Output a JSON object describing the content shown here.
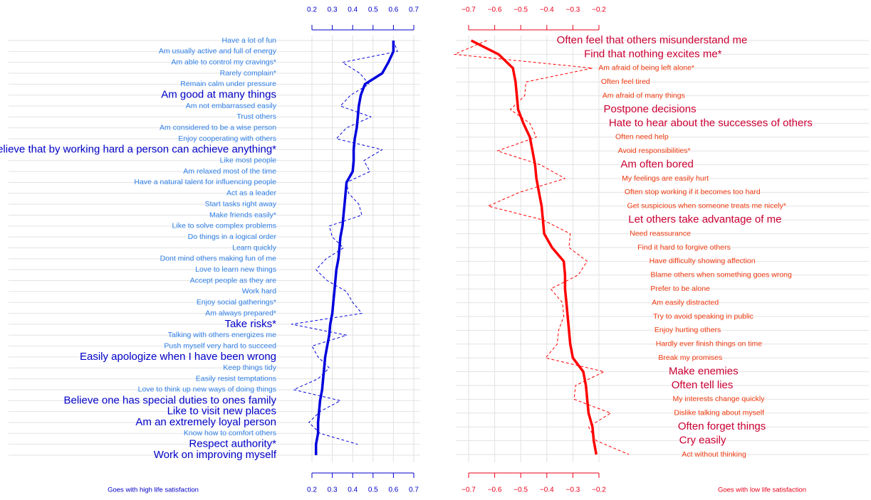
{
  "chart_data": [
    {
      "type": "line",
      "orientation": "horizontal",
      "footer": "Goes with high life satisfaction",
      "label_color": "#2f7fe6",
      "emphasis_color": "#0000c8",
      "axis_color": "#0000c8",
      "xlim": [
        0.2,
        0.7
      ],
      "xticks": [
        0.2,
        0.3,
        0.4,
        0.5,
        0.6,
        0.7
      ],
      "grid": true,
      "categories": [
        "Have a lot of fun",
        "Am usually active and full of energy",
        "Am able to control my cravings*",
        "Rarely complain*",
        "Remain calm under pressure",
        "Am good at many things",
        "Am not embarrassed easily",
        "Trust others",
        "Am considered to be a wise person",
        "Enjoy cooperating with others",
        "Believe that by working hard a person can achieve anything*",
        "Like most people",
        "Am relaxed most of the time",
        "Have a natural talent for influencing people",
        "Act as a leader",
        "Start tasks right away",
        "Make friends easily*",
        "Like to solve complex problems",
        "Do things in a logical order",
        "Learn quickly",
        "Dont mind others making fun of me",
        "Love to learn new things",
        "Accept people as they are",
        "Work hard",
        "Enjoy social gatherings*",
        "Am always prepared*",
        "Take risks*",
        "Talking with others energizes me",
        "Push myself very hard to succeed",
        "Easily apologize when I have been wrong",
        "Keep things tidy",
        "Easily resist temptations",
        "Love to think up new ways of doing things",
        "Believe one has special duties to ones family",
        "Like to visit new places",
        "Am an extremely loyal person",
        "Know how to comfort others",
        "Respect authority*",
        "Work on improving myself"
      ],
      "emphasized": [
        false,
        false,
        false,
        false,
        false,
        true,
        false,
        false,
        false,
        false,
        true,
        false,
        false,
        false,
        false,
        false,
        false,
        false,
        false,
        false,
        false,
        false,
        false,
        false,
        false,
        false,
        true,
        false,
        false,
        true,
        false,
        false,
        false,
        true,
        true,
        true,
        false,
        true,
        true
      ],
      "series": [
        {
          "color": "#0000dd",
          "style": "solid",
          "values": [
            0.6,
            0.6,
            0.575,
            0.545,
            0.46,
            0.44,
            0.43,
            0.425,
            0.42,
            0.41,
            0.405,
            0.405,
            0.4,
            0.37,
            0.365,
            0.36,
            0.355,
            0.35,
            0.34,
            0.335,
            0.33,
            0.32,
            0.315,
            0.31,
            0.305,
            0.3,
            0.29,
            0.285,
            0.275,
            0.265,
            0.26,
            0.255,
            0.25,
            0.24,
            0.235,
            0.23,
            0.23,
            0.22,
            0.22
          ]
        },
        {
          "color": "#0000dd",
          "style": "dashed",
          "values": [
            0.6,
            0.62,
            0.35,
            0.435,
            0.48,
            0.39,
            0.34,
            0.49,
            0.37,
            0.32,
            0.545,
            0.455,
            0.485,
            0.37,
            0.38,
            0.43,
            0.445,
            0.285,
            0.3,
            0.355,
            0.27,
            0.22,
            0.275,
            0.37,
            0.4,
            0.445,
            0.1,
            0.37,
            0.2,
            0.23,
            0.285,
            0.23,
            0.11,
            0.34,
            0.24,
            0.185,
            0.24,
            0.425,
            null
          ]
        }
      ]
    },
    {
      "type": "line",
      "orientation": "horizontal",
      "footer": "Goes with low life satisfaction",
      "label_color": "#f03a10",
      "emphasis_color": "#cc0033",
      "axis_color": "#e8001a",
      "xlim": [
        -0.7,
        -0.2
      ],
      "xticks": [
        {
          "value": -0.7,
          "label": "−0.7"
        },
        {
          "value": -0.6,
          "label": "−0.6"
        },
        {
          "value": -0.5,
          "label": "−0.5"
        },
        {
          "value": -0.4,
          "label": "−0.4"
        },
        {
          "value": -0.3,
          "label": "−0.3"
        },
        {
          "value": -0.2,
          "label": "−0.2"
        }
      ],
      "grid": true,
      "categories": [
        "Often feel that others misunderstand me",
        "Find that nothing excites me*",
        "Am afraid of being left alone*",
        "Often feel tired",
        "Am afraid of many things",
        "Postpone decisions",
        "Hate to hear about the successes of others",
        "Often need help",
        "Avoid responsibilities*",
        "Am often bored",
        "My feelings are easily hurt",
        "Often stop working if it becomes too hard",
        "Get suspicious when someone treats me nicely*",
        "Let others take advantage of me",
        "Need reassurance",
        "Find it hard to forgive others",
        "Have difficulty showing affection",
        "Blame others when something goes wrong",
        "Prefer to be alone",
        "Am easily distracted",
        "Try to avoid speaking in public",
        "Enjoy hurting others",
        "Hardly ever finish things on time",
        "Break my promises",
        "Make enemies",
        "Often tell lies",
        "My interests change quickly",
        "Dislike talking about myself",
        "Often forget things",
        "Cry easily",
        "Act without thinking"
      ],
      "emphasized": [
        true,
        true,
        false,
        false,
        false,
        true,
        true,
        false,
        false,
        true,
        false,
        false,
        false,
        true,
        false,
        false,
        false,
        false,
        false,
        false,
        false,
        false,
        false,
        false,
        true,
        true,
        false,
        false,
        true,
        true,
        false
      ],
      "series": [
        {
          "color": "#ff0000",
          "style": "solid",
          "values": [
            -0.69,
            -0.585,
            -0.53,
            -0.52,
            -0.515,
            -0.51,
            -0.49,
            -0.465,
            -0.455,
            -0.445,
            -0.44,
            -0.43,
            -0.42,
            -0.415,
            -0.41,
            -0.38,
            -0.335,
            -0.33,
            -0.33,
            -0.325,
            -0.32,
            -0.315,
            -0.31,
            -0.3,
            -0.26,
            -0.25,
            -0.245,
            -0.24,
            -0.225,
            -0.22,
            -0.21
          ]
        },
        {
          "color": "#ff0000",
          "style": "dashed",
          "values": [
            -0.63,
            -0.755,
            -0.225,
            -0.48,
            -0.485,
            -0.54,
            -0.465,
            -0.44,
            -0.59,
            -0.425,
            -0.33,
            -0.505,
            -0.625,
            -0.415,
            -0.31,
            -0.315,
            -0.245,
            -0.28,
            -0.385,
            -0.34,
            -0.335,
            -0.355,
            -0.36,
            -0.405,
            -0.18,
            -0.29,
            -0.295,
            -0.155,
            -0.24,
            -0.21,
            -0.085
          ]
        }
      ]
    }
  ]
}
